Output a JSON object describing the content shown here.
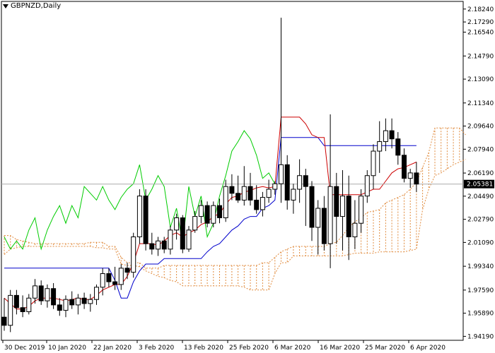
{
  "window": {
    "symbol_title": "GBPNZD,Daily"
  },
  "colors": {
    "tenkan": "#cc0000",
    "kijun": "#0000cc",
    "chikou": "#00cc00",
    "cloud": "#e08a3c",
    "candle": "#000000",
    "price_tag_bg": "#000000",
    "price_tag_fg": "#ffffff"
  },
  "chart_data": {
    "type": "candlestick",
    "title": "GBPNZD,Daily",
    "ylim": [
      1.939,
      2.188
    ],
    "y_ticks": [
      "2.18240",
      "2.17290",
      "2.16540",
      "2.14790",
      "2.13090",
      "2.11340",
      "2.09640",
      "2.07940",
      "2.06190",
      "2.04490",
      "2.02790",
      "2.01090",
      "1.99340",
      "1.97590",
      "1.95890",
      "1.94190"
    ],
    "x_labels": [
      "30 Dec 2019",
      "10 Jan 2020",
      "22 Jan 2020",
      "3 Feb 2020",
      "13 Feb 2020",
      "25 Feb 2020",
      "6 Mar 2020",
      "16 Mar 2020",
      "25 Mar 2020",
      "6 Apr 2020"
    ],
    "current_price": "2.05381",
    "current_value": 2.0538,
    "candles": [
      [
        1.956,
        1.97,
        1.946,
        1.95
      ],
      [
        1.95,
        1.976,
        1.945,
        1.972
      ],
      [
        1.972,
        1.976,
        1.958,
        1.963
      ],
      [
        1.963,
        1.972,
        1.956,
        1.96
      ],
      [
        1.96,
        1.973,
        1.958,
        1.97
      ],
      [
        1.97,
        1.984,
        1.966,
        1.979
      ],
      [
        1.979,
        1.983,
        1.965,
        1.968
      ],
      [
        1.968,
        1.98,
        1.963,
        1.977
      ],
      [
        1.977,
        1.981,
        1.962,
        1.965
      ],
      [
        1.965,
        1.97,
        1.957,
        1.961
      ],
      [
        1.961,
        1.972,
        1.956,
        1.969
      ],
      [
        1.969,
        1.975,
        1.962,
        1.965
      ],
      [
        1.965,
        1.973,
        1.958,
        1.97
      ],
      [
        1.97,
        1.974,
        1.962,
        1.966
      ],
      [
        1.966,
        1.973,
        1.96,
        1.969
      ],
      [
        1.969,
        1.98,
        1.965,
        1.978
      ],
      [
        1.978,
        1.992,
        1.972,
        1.988
      ],
      [
        1.988,
        1.992,
        1.978,
        1.982
      ],
      [
        1.982,
        1.993,
        1.976,
        1.98
      ],
      [
        1.98,
        1.995,
        1.976,
        1.992
      ],
      [
        1.992,
        1.996,
        1.984,
        1.989
      ],
      [
        1.989,
        2.018,
        1.985,
        2.015
      ],
      [
        2.015,
        2.05,
        2.01,
        2.045
      ],
      [
        2.045,
        2.05,
        2.005,
        2.01
      ],
      [
        2.01,
        2.018,
        2.002,
        2.006
      ],
      [
        2.006,
        2.015,
        2.001,
        2.012
      ],
      [
        2.012,
        2.015,
        2.003,
        2.006
      ],
      [
        2.006,
        2.023,
        2.002,
        2.02
      ],
      [
        2.02,
        2.032,
        2.013,
        2.029
      ],
      [
        2.029,
        2.031,
        2.003,
        2.006
      ],
      [
        2.006,
        2.023,
        2.004,
        2.02
      ],
      [
        2.02,
        2.034,
        2.018,
        2.03
      ],
      [
        2.03,
        2.042,
        2.025,
        2.038
      ],
      [
        2.038,
        2.041,
        2.022,
        2.025
      ],
      [
        2.025,
        2.041,
        2.022,
        2.038
      ],
      [
        2.038,
        2.043,
        2.025,
        2.029
      ],
      [
        2.029,
        2.057,
        2.026,
        2.052
      ],
      [
        2.052,
        2.061,
        2.042,
        2.047
      ],
      [
        2.047,
        2.06,
        2.04,
        2.042
      ],
      [
        2.042,
        2.067,
        2.038,
        2.052
      ],
      [
        2.052,
        2.062,
        2.038,
        2.042
      ],
      [
        2.042,
        2.053,
        2.032,
        2.035
      ],
      [
        2.035,
        2.048,
        2.03,
        2.044
      ],
      [
        2.044,
        2.057,
        2.04,
        2.05
      ],
      [
        2.05,
        2.056,
        2.046,
        2.054
      ],
      [
        2.054,
        2.176,
        2.04,
        2.068
      ],
      [
        2.068,
        2.075,
        2.035,
        2.042
      ],
      [
        2.042,
        2.054,
        2.032,
        2.05
      ],
      [
        2.05,
        2.072,
        2.04,
        2.06
      ],
      [
        2.06,
        2.065,
        2.023,
        2.052
      ],
      [
        2.052,
        2.056,
        2.012,
        2.022
      ],
      [
        2.022,
        2.042,
        2.002,
        2.036
      ],
      [
        2.036,
        2.045,
        2.005,
        2.01
      ],
      [
        2.01,
        2.105,
        1.992,
        2.052
      ],
      [
        2.052,
        2.062,
        2.01,
        2.03
      ],
      [
        2.03,
        2.064,
        2.005,
        2.045
      ],
      [
        2.045,
        2.06,
        1.998,
        2.015
      ],
      [
        2.015,
        2.042,
        2.006,
        2.025
      ],
      [
        2.025,
        2.05,
        2.018,
        2.045
      ],
      [
        2.045,
        2.064,
        2.04,
        2.06
      ],
      [
        2.06,
        2.083,
        2.05,
        2.078
      ],
      [
        2.078,
        2.1,
        2.062,
        2.085
      ],
      [
        2.085,
        2.102,
        2.078,
        2.093
      ],
      [
        2.093,
        2.102,
        2.08,
        2.087
      ],
      [
        2.087,
        2.092,
        2.068,
        2.075
      ],
      [
        2.075,
        2.08,
        2.055,
        2.058
      ],
      [
        2.058,
        2.065,
        2.051,
        2.062
      ],
      [
        2.062,
        2.07,
        2.048,
        2.0538
      ]
    ],
    "tenkan_x_start": 0,
    "tenkan": [
      1.97,
      1.966,
      1.962,
      1.962,
      1.964,
      1.968,
      1.97,
      1.97,
      1.97,
      1.969,
      1.968,
      1.969,
      1.97,
      1.969,
      1.969,
      1.972,
      1.976,
      1.978,
      1.98,
      1.98,
      1.986,
      1.996,
      2.01,
      2.01,
      2.01,
      2.009,
      2.012,
      2.016,
      2.018,
      2.015,
      2.018,
      2.02,
      2.024,
      2.026,
      2.03,
      2.032,
      2.039,
      2.044,
      2.045,
      2.048,
      2.049,
      2.051,
      2.052,
      2.051,
      2.052,
      2.103,
      2.103,
      2.103,
      2.103,
      2.098,
      2.09,
      2.088,
      2.088,
      2.046,
      2.046,
      2.046,
      2.046,
      2.046,
      2.046,
      2.048,
      2.05,
      2.05,
      2.056,
      2.062,
      2.065,
      2.066,
      2.068,
      2.07
    ],
    "kijun_x_start": 0,
    "kijun": [
      1.992,
      1.992,
      1.992,
      1.992,
      1.992,
      1.992,
      1.992,
      1.992,
      1.992,
      1.992,
      1.992,
      1.992,
      1.992,
      1.992,
      1.992,
      1.992,
      1.992,
      1.992,
      1.983,
      1.97,
      1.97,
      1.982,
      1.99,
      1.995,
      1.995,
      1.995,
      1.999,
      1.999,
      1.999,
      1.999,
      1.999,
      1.999,
      1.999,
      2.004,
      2.008,
      2.01,
      2.015,
      2.02,
      2.023,
      2.028,
      2.03,
      2.03,
      2.036,
      2.038,
      2.042,
      2.088,
      2.088,
      2.088,
      2.088,
      2.088,
      2.088,
      2.088,
      2.082,
      2.082,
      2.082,
      2.082,
      2.082,
      2.082,
      2.082,
      2.082,
      2.082,
      2.082,
      2.082,
      2.082,
      2.082,
      2.082,
      2.082,
      2.082
    ],
    "chikou_x_start": 0,
    "chikou": [
      2.015,
      2.006,
      2.012,
      2.006,
      2.02,
      2.029,
      2.006,
      2.02,
      2.03,
      2.038,
      2.025,
      2.038,
      2.029,
      2.052,
      2.047,
      2.042,
      2.052,
      2.042,
      2.035,
      2.044,
      2.05,
      2.054,
      2.068,
      2.042,
      2.05,
      2.06,
      2.052,
      2.022,
      2.036,
      2.01,
      2.052,
      2.03,
      2.045,
      2.015,
      2.025,
      2.045,
      2.06,
      2.078,
      2.085,
      2.093,
      2.087,
      2.075,
      2.058,
      2.062,
      2.0538
    ],
    "cloud_x_start": 0,
    "cloud_top": [
      2.016,
      2.016,
      2.013,
      2.012,
      2.011,
      2.01,
      2.01,
      2.01,
      2.01,
      2.01,
      2.01,
      2.01,
      2.01,
      2.01,
      2.011,
      2.011,
      2.011,
      2.008,
      2.008,
      2.0,
      1.996,
      1.996,
      1.996,
      1.992,
      1.992,
      1.992,
      1.994,
      1.994,
      1.994,
      1.994,
      1.994,
      1.994,
      1.994,
      1.994,
      1.994,
      1.994,
      1.994,
      1.994,
      1.994,
      1.994,
      1.994,
      1.994,
      1.996,
      1.996,
      2.0,
      2.004,
      2.006,
      2.008,
      2.008,
      2.008,
      2.008,
      2.008,
      2.008,
      2.01,
      2.011,
      2.016,
      2.022,
      2.026,
      2.029,
      2.033,
      2.034,
      2.035,
      2.04,
      2.042,
      2.044,
      2.046,
      2.05,
      2.055,
      2.066,
      2.077,
      2.095,
      2.095,
      2.095,
      2.095,
      2.095,
      2.09
    ],
    "cloud_bottom": [
      2.002,
      2.006,
      2.007,
      2.008,
      2.008,
      2.008,
      2.008,
      2.008,
      2.008,
      2.008,
      2.008,
      2.008,
      2.008,
      2.008,
      2.008,
      2.007,
      2.007,
      2.006,
      2.006,
      1.995,
      1.994,
      1.994,
      1.993,
      1.99,
      1.988,
      1.986,
      1.985,
      1.983,
      1.982,
      1.979,
      1.979,
      1.979,
      1.979,
      1.979,
      1.979,
      1.979,
      1.979,
      1.979,
      1.979,
      1.978,
      1.976,
      1.976,
      1.976,
      1.976,
      1.988,
      1.996,
      1.996,
      2.001,
      2.001,
      2.001,
      2.001,
      2.001,
      2.001,
      2.001,
      2.001,
      2.001,
      2.002,
      2.003,
      2.003,
      2.003,
      2.003,
      2.004,
      2.004,
      2.004,
      2.004,
      2.004,
      2.005,
      2.006,
      2.035,
      2.05,
      2.06,
      2.062,
      2.065,
      2.068,
      2.07,
      2.072
    ]
  }
}
